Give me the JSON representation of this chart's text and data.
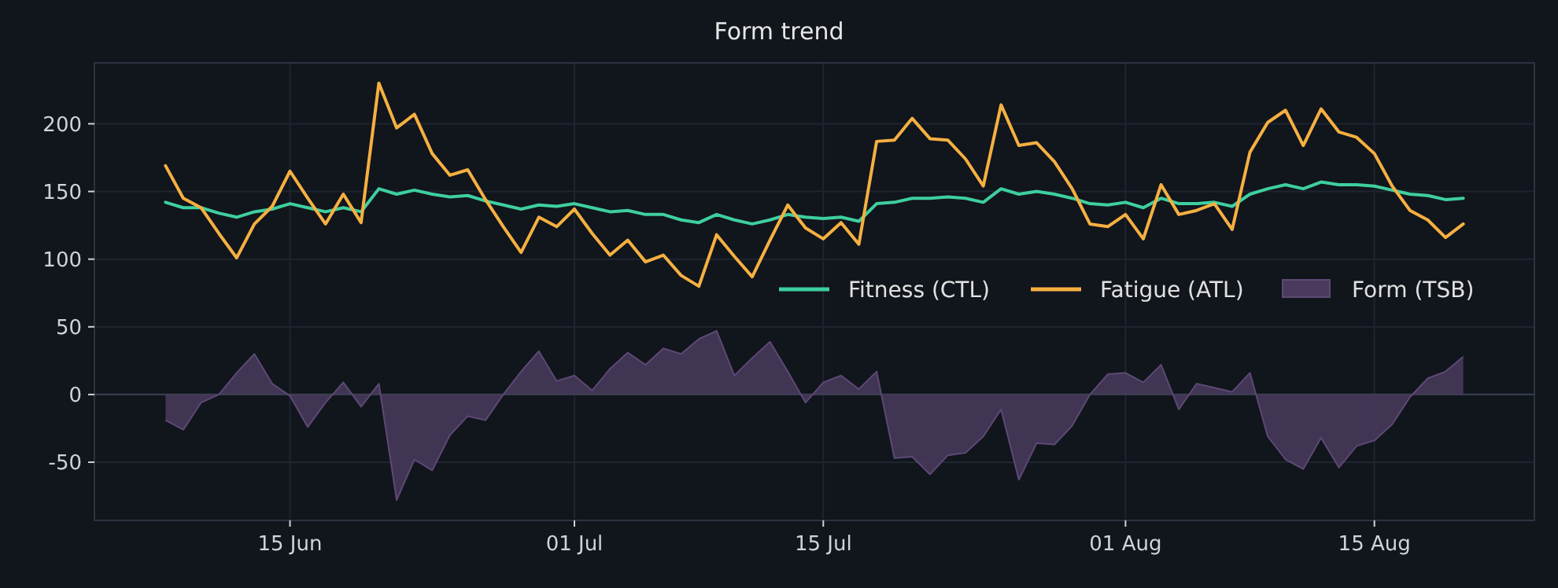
{
  "chart_data": {
    "type": "line",
    "title": "Form trend",
    "x": [
      "--06-08",
      "--06-09",
      "--06-10",
      "--06-11",
      "--06-12",
      "--06-13",
      "--06-14",
      "--06-15",
      "--06-16",
      "--06-17",
      "--06-18",
      "--06-19",
      "--06-20",
      "--06-21",
      "--06-22",
      "--06-23",
      "--06-24",
      "--06-25",
      "--06-26",
      "--06-27",
      "--06-28",
      "--06-29",
      "--06-30",
      "--07-01",
      "--07-02",
      "--07-03",
      "--07-04",
      "--07-05",
      "--07-06",
      "--07-07",
      "--07-08",
      "--07-09",
      "--07-10",
      "--07-11",
      "--07-12",
      "--07-13",
      "--07-14",
      "--07-15",
      "--07-16",
      "--07-17",
      "--07-18",
      "--07-19",
      "--07-20",
      "--07-21",
      "--07-22",
      "--07-23",
      "--07-24",
      "--07-25",
      "--07-26",
      "--07-27",
      "--07-28",
      "--07-29",
      "--07-30",
      "--07-31",
      "--08-01",
      "--08-02",
      "--08-03",
      "--08-04",
      "--08-05",
      "--08-06",
      "--08-07",
      "--08-08",
      "--08-09",
      "--08-10",
      "--08-11",
      "--08-12",
      "--08-13",
      "--08-14",
      "--08-15",
      "--08-16",
      "--08-17",
      "--08-18",
      "--08-19",
      "--08-20"
    ],
    "series": [
      {
        "name": "Fitness (CTL)",
        "color": "#3ecf9e",
        "values": [
          142,
          138,
          138,
          134,
          131,
          135,
          137,
          141,
          138,
          135,
          138,
          135,
          152,
          148,
          151,
          148,
          146,
          147,
          143,
          140,
          137,
          140,
          139,
          141,
          138,
          135,
          136,
          133,
          133,
          129,
          127,
          133,
          129,
          126,
          129,
          133,
          131,
          130,
          131,
          128,
          141,
          142,
          145,
          145,
          146,
          145,
          142,
          152,
          148,
          150,
          148,
          145,
          141,
          140,
          142,
          138,
          145,
          141,
          141,
          142,
          139,
          148,
          152,
          155,
          152,
          157,
          155,
          155,
          154,
          151,
          148,
          147,
          144,
          145
        ]
      },
      {
        "name": "Fatigue (ATL)",
        "color": "#f5b041",
        "values": [
          169,
          145,
          138,
          119,
          101,
          126,
          139,
          165,
          145,
          126,
          148,
          127,
          230,
          197,
          207,
          178,
          162,
          166,
          144,
          124,
          105,
          131,
          124,
          137,
          119,
          103,
          114,
          98,
          103,
          88,
          80,
          118,
          102,
          87,
          114,
          140,
          123,
          115,
          127,
          111,
          187,
          188,
          204,
          189,
          188,
          174,
          154,
          214,
          184,
          186,
          172,
          152,
          126,
          124,
          133,
          115,
          155,
          133,
          136,
          141,
          122,
          179,
          201,
          210,
          184,
          211,
          194,
          190,
          178,
          154,
          136,
          129,
          116,
          126
        ]
      },
      {
        "name": "Form (TSB)",
        "type": "area",
        "color": "#4a3b5e",
        "values": [
          -19,
          -26,
          -6,
          0,
          16,
          30,
          8,
          -1,
          -24,
          -6,
          9,
          -9,
          8,
          -78,
          -48,
          -56,
          -30,
          -16,
          -19,
          0,
          17,
          32,
          10,
          14,
          3,
          19,
          31,
          22,
          34,
          30,
          41,
          47,
          14,
          27,
          39,
          17,
          -6,
          9,
          14,
          4,
          17,
          -47,
          -46,
          -59,
          -45,
          -43,
          -31,
          -11,
          -63,
          -36,
          -37,
          -23,
          0,
          15,
          16,
          9,
          22,
          -11,
          8,
          5,
          2,
          16,
          -31,
          -48,
          -55,
          -32,
          -54,
          -38,
          -34,
          -22,
          -2,
          12,
          17,
          28
        ]
      }
    ],
    "xlim": [
      "--06-04",
      "--08-24"
    ],
    "xticks": [
      {
        "value": "--06-15",
        "label": "15 Jun"
      },
      {
        "value": "--07-01",
        "label": "01 Jul"
      },
      {
        "value": "--07-15",
        "label": "15 Jul"
      },
      {
        "value": "--08-01",
        "label": "01 Aug"
      },
      {
        "value": "--08-15",
        "label": "15 Aug"
      }
    ],
    "ylim": [
      -93,
      245
    ],
    "yticks": [
      -50,
      0,
      50,
      100,
      150,
      200
    ],
    "ref_lines": [
      {
        "axis": "y",
        "value": 0,
        "color": "#3a4150"
      }
    ],
    "grid": true,
    "legend": "right",
    "marker": "none",
    "line_style": "solid"
  }
}
